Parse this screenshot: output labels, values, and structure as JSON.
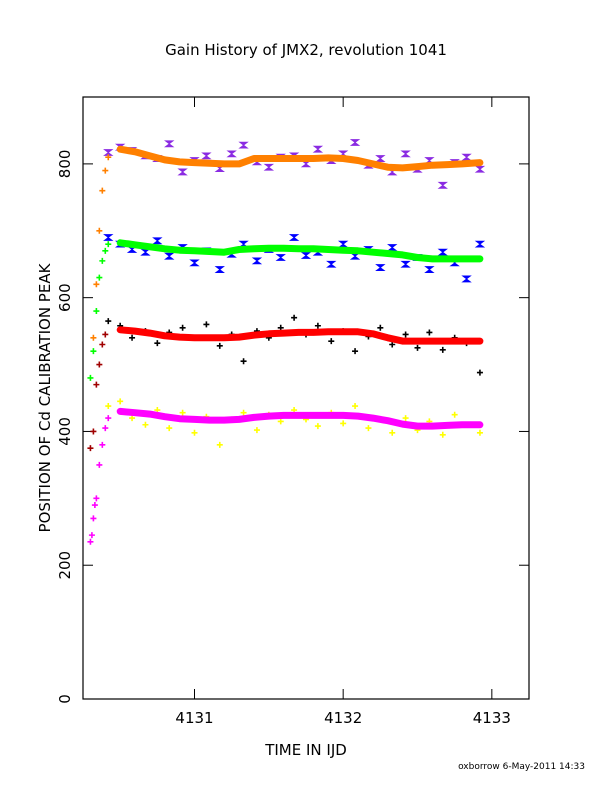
{
  "chart_data": {
    "type": "scatter",
    "title": "Gain History of JMX2, revolution 1041",
    "xlabel": "TIME IN IJD",
    "ylabel": "POSITION OF Cd CALIBRATION PEAK",
    "xlim": [
      4130.25,
      4133.25
    ],
    "ylim": [
      0,
      900
    ],
    "x_ticks": [
      4131,
      4132,
      4133
    ],
    "y_ticks": [
      0,
      200,
      400,
      600,
      800
    ],
    "footer": "oxborrow  6-May-2011 14:33",
    "grid": false,
    "legend": "none",
    "series": [
      {
        "role": "measured",
        "color": "#8a2be2",
        "marker": "hourglass",
        "x": [
          4130.42,
          4130.5,
          4130.58,
          4130.67,
          4130.75,
          4130.83,
          4130.92,
          4131.0,
          4131.08,
          4131.17,
          4131.25,
          4131.33,
          4131.42,
          4131.5,
          4131.58,
          4131.67,
          4131.75,
          4131.83,
          4131.92,
          4132.0,
          4132.08,
          4132.17,
          4132.25,
          4132.33,
          4132.42,
          4132.5,
          4132.58,
          4132.67,
          4132.75,
          4132.83,
          4132.92
        ],
        "y": [
          817,
          825,
          820,
          812,
          808,
          830,
          788,
          805,
          812,
          793,
          815,
          828,
          803,
          795,
          810,
          812,
          800,
          822,
          805,
          815,
          832,
          798,
          808,
          788,
          815,
          792,
          805,
          768,
          802,
          810,
          792
        ]
      },
      {
        "role": "fit",
        "color": "#ff8000",
        "marker": "line",
        "x": [
          4130.5,
          4130.6,
          4130.7,
          4130.8,
          4130.9,
          4131.0,
          4131.1,
          4131.2,
          4131.3,
          4131.4,
          4131.5,
          4131.6,
          4131.7,
          4131.8,
          4131.9,
          4132.0,
          4132.1,
          4132.2,
          4132.3,
          4132.4,
          4132.5,
          4132.6,
          4132.7,
          4132.8,
          4132.92
        ],
        "y": [
          822,
          818,
          812,
          806,
          803,
          802,
          801,
          800,
          800,
          808,
          808,
          808,
          808,
          808,
          809,
          808,
          805,
          800,
          795,
          794,
          796,
          798,
          799,
          800,
          802
        ]
      },
      {
        "role": "measured",
        "color": "#0000ff",
        "marker": "hourglass",
        "x": [
          4130.42,
          4130.5,
          4130.58,
          4130.67,
          4130.75,
          4130.83,
          4130.92,
          4131.0,
          4131.08,
          4131.17,
          4131.25,
          4131.33,
          4131.42,
          4131.5,
          4131.58,
          4131.67,
          4131.75,
          4131.83,
          4131.92,
          4132.0,
          4132.08,
          4132.17,
          4132.25,
          4132.33,
          4132.42,
          4132.5,
          4132.58,
          4132.67,
          4132.75,
          4132.83,
          4132.92
        ],
        "y": [
          690,
          680,
          672,
          668,
          685,
          662,
          675,
          652,
          670,
          642,
          665,
          680,
          655,
          672,
          660,
          690,
          663,
          668,
          650,
          680,
          662,
          672,
          645,
          675,
          650,
          660,
          642,
          668,
          652,
          628,
          680
        ]
      },
      {
        "role": "fit",
        "color": "#00ff00",
        "marker": "line",
        "x": [
          4130.5,
          4130.6,
          4130.7,
          4130.8,
          4130.9,
          4131.0,
          4131.1,
          4131.2,
          4131.3,
          4131.4,
          4131.5,
          4131.6,
          4131.7,
          4131.8,
          4131.9,
          4132.0,
          4132.1,
          4132.2,
          4132.3,
          4132.4,
          4132.5,
          4132.6,
          4132.7,
          4132.8,
          4132.92
        ],
        "y": [
          682,
          679,
          676,
          673,
          671,
          670,
          669,
          668,
          672,
          673,
          674,
          674,
          673,
          673,
          672,
          671,
          670,
          668,
          666,
          664,
          660,
          658,
          658,
          658,
          658
        ]
      },
      {
        "role": "measured",
        "color": "#000000",
        "marker": "plus",
        "x": [
          4130.42,
          4130.5,
          4130.58,
          4130.67,
          4130.75,
          4130.83,
          4130.92,
          4131.0,
          4131.08,
          4131.17,
          4131.25,
          4131.33,
          4131.42,
          4131.5,
          4131.58,
          4131.67,
          4131.75,
          4131.83,
          4131.92,
          4132.0,
          4132.08,
          4132.17,
          4132.25,
          4132.33,
          4132.42,
          4132.5,
          4132.58,
          4132.67,
          4132.75,
          4132.83,
          4132.92
        ],
        "y": [
          565,
          558,
          540,
          550,
          532,
          548,
          555,
          540,
          560,
          528,
          545,
          505,
          550,
          540,
          555,
          570,
          545,
          558,
          535,
          550,
          520,
          542,
          555,
          530,
          545,
          525,
          548,
          522,
          540,
          532,
          488
        ]
      },
      {
        "role": "fit",
        "color": "#ff0000",
        "marker": "line",
        "x": [
          4130.5,
          4130.6,
          4130.7,
          4130.8,
          4130.9,
          4131.0,
          4131.1,
          4131.2,
          4131.3,
          4131.4,
          4131.5,
          4131.6,
          4131.7,
          4131.8,
          4131.9,
          4132.0,
          4132.1,
          4132.2,
          4132.3,
          4132.4,
          4132.5,
          4132.6,
          4132.7,
          4132.8,
          4132.92
        ],
        "y": [
          552,
          550,
          547,
          543,
          541,
          540,
          540,
          540,
          541,
          544,
          546,
          547,
          548,
          548,
          549,
          549,
          549,
          546,
          540,
          535,
          535,
          535,
          535,
          535,
          535
        ]
      },
      {
        "role": "measured",
        "color": "#ffff00",
        "marker": "plus",
        "x": [
          4130.42,
          4130.5,
          4130.58,
          4130.67,
          4130.75,
          4130.83,
          4130.92,
          4131.0,
          4131.08,
          4131.17,
          4131.25,
          4131.33,
          4131.42,
          4131.5,
          4131.58,
          4131.67,
          4131.75,
          4131.83,
          4131.92,
          4132.0,
          4132.08,
          4132.17,
          4132.25,
          4132.33,
          4132.42,
          4132.5,
          4132.58,
          4132.67,
          4132.75,
          4132.83,
          4132.92
        ],
        "y": [
          438,
          445,
          420,
          410,
          432,
          405,
          428,
          398,
          422,
          380,
          418,
          428,
          402,
          425,
          415,
          432,
          418,
          408,
          428,
          412,
          438,
          405,
          418,
          398,
          420,
          402,
          415,
          395,
          425,
          410,
          398
        ]
      },
      {
        "role": "fit",
        "color": "#ff00ff",
        "marker": "line",
        "x": [
          4130.5,
          4130.6,
          4130.7,
          4130.8,
          4130.9,
          4131.0,
          4131.1,
          4131.2,
          4131.3,
          4131.4,
          4131.5,
          4131.6,
          4131.7,
          4131.8,
          4131.9,
          4132.0,
          4132.1,
          4132.2,
          4132.3,
          4132.4,
          4132.5,
          4132.6,
          4132.7,
          4132.8,
          4132.92
        ],
        "y": [
          430,
          428,
          426,
          422,
          419,
          418,
          417,
          417,
          418,
          421,
          423,
          424,
          424,
          424,
          424,
          424,
          423,
          420,
          416,
          411,
          408,
          408,
          409,
          410,
          410
        ]
      },
      {
        "role": "ramp",
        "color": "#ff8000",
        "marker": "plus",
        "x": [
          4130.32,
          4130.34,
          4130.36,
          4130.38,
          4130.4,
          4130.42
        ],
        "y": [
          540,
          620,
          700,
          760,
          790,
          810
        ]
      },
      {
        "role": "ramp",
        "color": "#00ff00",
        "marker": "plus",
        "x": [
          4130.3,
          4130.32,
          4130.34,
          4130.36,
          4130.38,
          4130.4,
          4130.42
        ],
        "y": [
          480,
          520,
          580,
          630,
          655,
          670,
          680
        ]
      },
      {
        "role": "ramp",
        "color": "#a00000",
        "marker": "plus",
        "x": [
          4130.3,
          4130.32,
          4130.34,
          4130.36,
          4130.38,
          4130.4
        ],
        "y": [
          375,
          400,
          470,
          500,
          530,
          545
        ]
      },
      {
        "role": "ramp",
        "color": "#ff00ff",
        "marker": "plus",
        "x": [
          4130.3,
          4130.31,
          4130.32,
          4130.33,
          4130.34,
          4130.36,
          4130.38,
          4130.4,
          4130.42
        ],
        "y": [
          235,
          245,
          270,
          290,
          300,
          350,
          380,
          405,
          420
        ]
      }
    ]
  }
}
